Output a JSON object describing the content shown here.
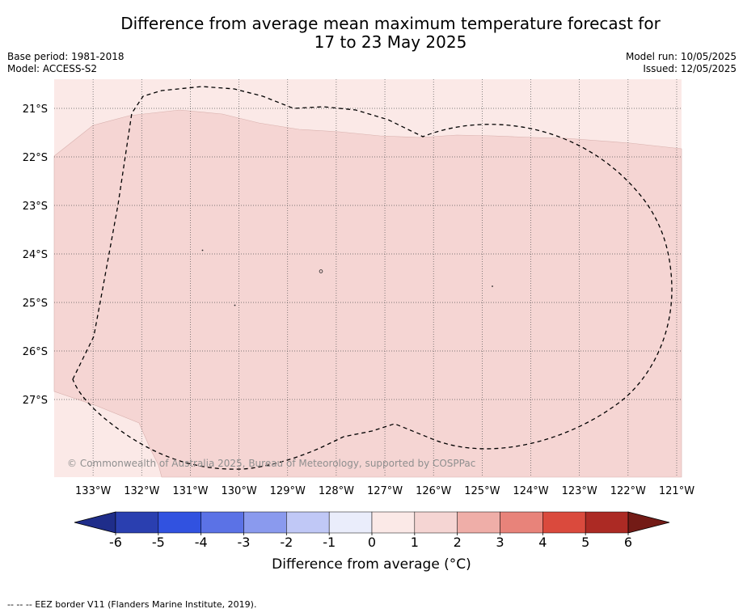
{
  "title": {
    "line1": "Difference from average mean maximum temperature forecast for",
    "line2": "17 to 23 May 2025"
  },
  "meta": {
    "base_period": "Base period: 1981-2018",
    "model": "Model: ACCESS-S2",
    "model_run": "Model run: 10/05/2025",
    "issued": "Issued: 12/05/2025"
  },
  "map": {
    "copyright": "© Commonwealth of Australia 2025, Bureau of Meteorology, supported by COSPPac",
    "lon_ticks": [
      "133°W",
      "132°W",
      "131°W",
      "130°W",
      "129°W",
      "128°W",
      "127°W",
      "126°W",
      "125°W",
      "124°W",
      "123°W",
      "122°W",
      "121°W"
    ],
    "lat_ticks": [
      "21°S",
      "22°S",
      "23°S",
      "24°S",
      "25°S",
      "26°S",
      "27°S"
    ],
    "lon_range": [
      -133.8,
      -120.9
    ],
    "lat_range": [
      -28.6,
      -20.4
    ],
    "colors": {
      "band_0_1": "#fbe9e7",
      "band_1_2": "#f5d5d3",
      "grid": "#555555",
      "eez": "#000000"
    }
  },
  "colorbar": {
    "ticks": [
      "-6",
      "-5",
      "-4",
      "-3",
      "-2",
      "-1",
      "0",
      "1",
      "2",
      "3",
      "4",
      "5",
      "6"
    ],
    "colors": [
      "#1f2d8a",
      "#2a3fb0",
      "#3152e0",
      "#5b72e6",
      "#8a9aee",
      "#c0c8f6",
      "#eaedfb",
      "#fbe9e7",
      "#f5d5d3",
      "#efaea8",
      "#e8837a",
      "#da4a3d",
      "#ac2a24",
      "#731b16"
    ],
    "label": "Difference from average ($^\\circ$C)",
    "label_display": "Difference from average (°C)"
  },
  "footnote": "-- -- -- EEZ border V11 (Flanders Marine Institute, 2019)."
}
